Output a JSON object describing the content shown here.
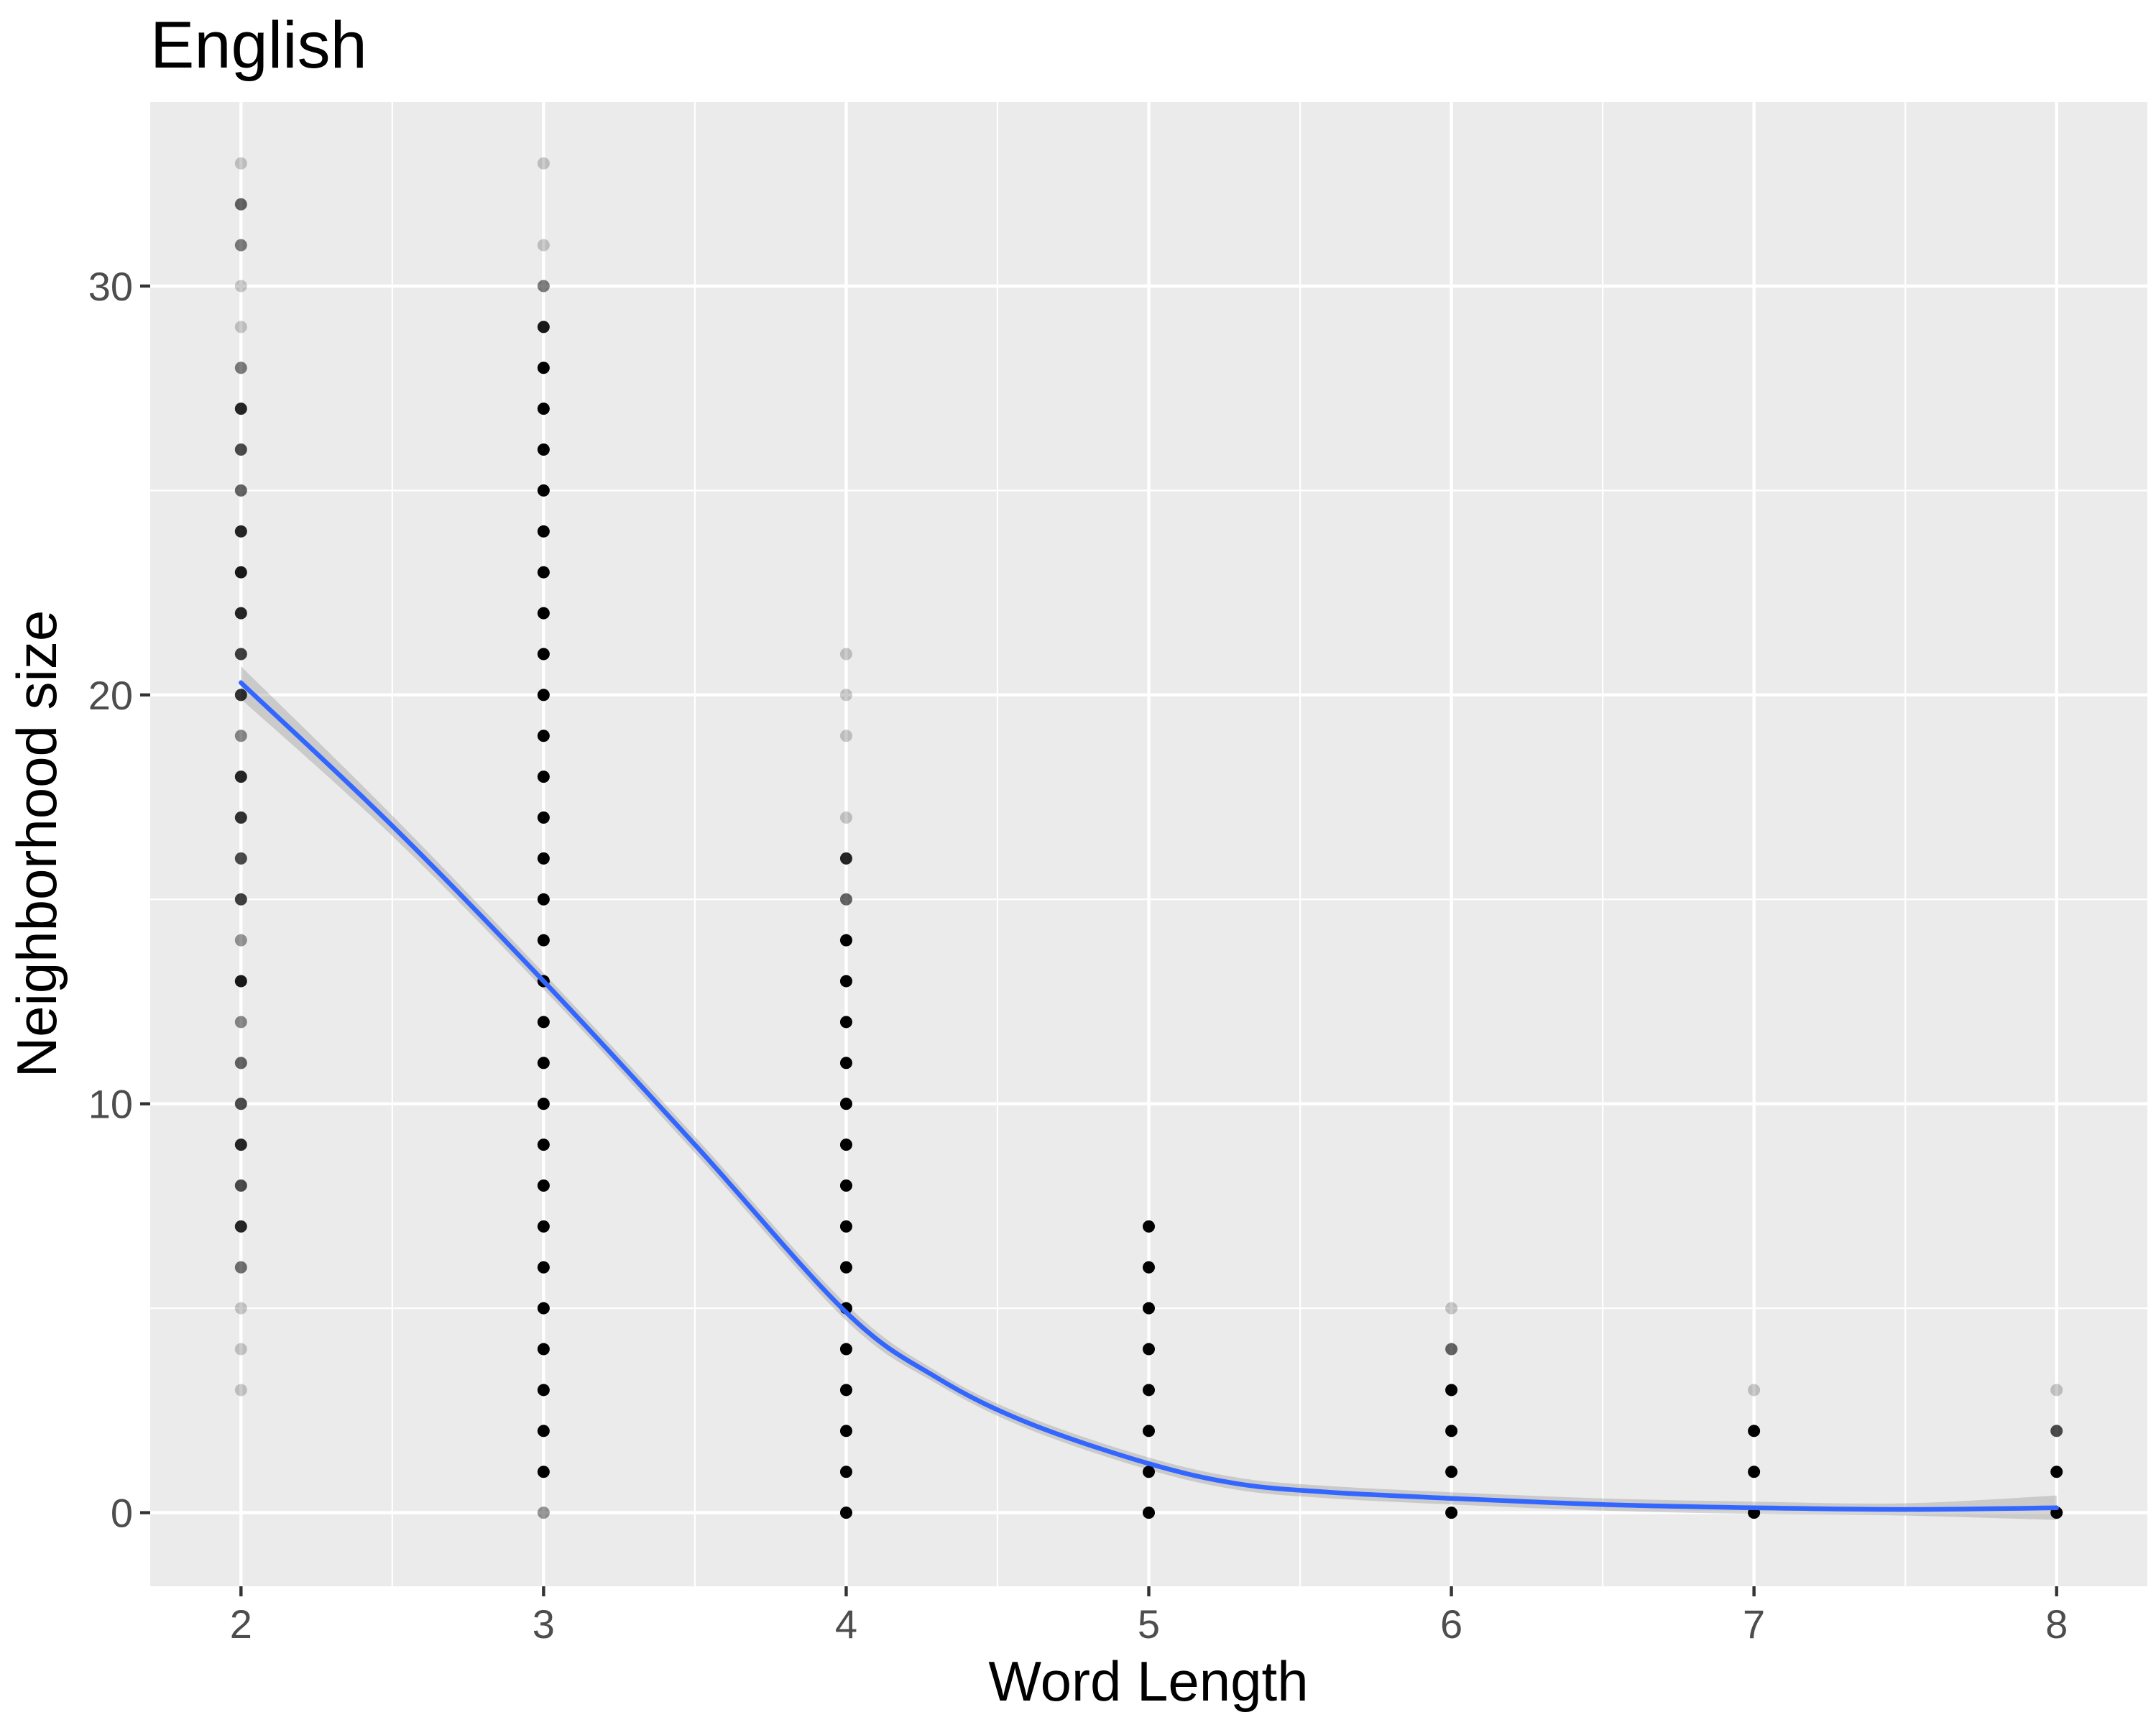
{
  "chart_data": {
    "type": "scatter",
    "title": "English",
    "xlabel": "Word Length",
    "ylabel": "Neighborhood size",
    "xlim": [
      1.7,
      8.3
    ],
    "ylim": [
      -1.8,
      34.5
    ],
    "x_ticks": [
      2,
      3,
      4,
      5,
      6,
      7,
      8
    ],
    "y_ticks": [
      0,
      10,
      20,
      30
    ],
    "grid": true,
    "colors": {
      "panel": "#ebebeb",
      "grid": "#ffffff",
      "point": "#000000",
      "line": "#3366ff",
      "ribbon": "#999999"
    },
    "points": [
      {
        "x": 2,
        "y": 3,
        "opacity": 0.2
      },
      {
        "x": 2,
        "y": 4,
        "opacity": 0.2
      },
      {
        "x": 2,
        "y": 5,
        "opacity": 0.2
      },
      {
        "x": 2,
        "y": 6,
        "opacity": 0.55
      },
      {
        "x": 2,
        "y": 7,
        "opacity": 0.85
      },
      {
        "x": 2,
        "y": 8,
        "opacity": 0.7
      },
      {
        "x": 2,
        "y": 9,
        "opacity": 0.85
      },
      {
        "x": 2,
        "y": 10,
        "opacity": 0.7
      },
      {
        "x": 2,
        "y": 11,
        "opacity": 0.6
      },
      {
        "x": 2,
        "y": 12,
        "opacity": 0.45
      },
      {
        "x": 2,
        "y": 13,
        "opacity": 0.9
      },
      {
        "x": 2,
        "y": 14,
        "opacity": 0.4
      },
      {
        "x": 2,
        "y": 15,
        "opacity": 0.75
      },
      {
        "x": 2,
        "y": 16,
        "opacity": 0.7
      },
      {
        "x": 2,
        "y": 17,
        "opacity": 0.8
      },
      {
        "x": 2,
        "y": 18,
        "opacity": 0.85
      },
      {
        "x": 2,
        "y": 19,
        "opacity": 0.45
      },
      {
        "x": 2,
        "y": 20,
        "opacity": 0.8
      },
      {
        "x": 2,
        "y": 21,
        "opacity": 0.75
      },
      {
        "x": 2,
        "y": 22,
        "opacity": 0.85
      },
      {
        "x": 2,
        "y": 23,
        "opacity": 0.9
      },
      {
        "x": 2,
        "y": 24,
        "opacity": 0.85
      },
      {
        "x": 2,
        "y": 25,
        "opacity": 0.6
      },
      {
        "x": 2,
        "y": 26,
        "opacity": 0.7
      },
      {
        "x": 2,
        "y": 27,
        "opacity": 0.85
      },
      {
        "x": 2,
        "y": 28,
        "opacity": 0.5
      },
      {
        "x": 2,
        "y": 29,
        "opacity": 0.2
      },
      {
        "x": 2,
        "y": 30,
        "opacity": 0.2
      },
      {
        "x": 2,
        "y": 31,
        "opacity": 0.5
      },
      {
        "x": 2,
        "y": 32,
        "opacity": 0.6
      },
      {
        "x": 2,
        "y": 33,
        "opacity": 0.2
      },
      {
        "x": 3,
        "y": 0,
        "opacity": 0.4
      },
      {
        "x": 3,
        "y": 1,
        "opacity": 1
      },
      {
        "x": 3,
        "y": 2,
        "opacity": 1
      },
      {
        "x": 3,
        "y": 3,
        "opacity": 1
      },
      {
        "x": 3,
        "y": 4,
        "opacity": 1
      },
      {
        "x": 3,
        "y": 5,
        "opacity": 1
      },
      {
        "x": 3,
        "y": 6,
        "opacity": 1
      },
      {
        "x": 3,
        "y": 7,
        "opacity": 1
      },
      {
        "x": 3,
        "y": 8,
        "opacity": 1
      },
      {
        "x": 3,
        "y": 9,
        "opacity": 1
      },
      {
        "x": 3,
        "y": 10,
        "opacity": 1
      },
      {
        "x": 3,
        "y": 11,
        "opacity": 1
      },
      {
        "x": 3,
        "y": 12,
        "opacity": 1
      },
      {
        "x": 3,
        "y": 13,
        "opacity": 1
      },
      {
        "x": 3,
        "y": 14,
        "opacity": 1
      },
      {
        "x": 3,
        "y": 15,
        "opacity": 1
      },
      {
        "x": 3,
        "y": 16,
        "opacity": 1
      },
      {
        "x": 3,
        "y": 17,
        "opacity": 1
      },
      {
        "x": 3,
        "y": 18,
        "opacity": 1
      },
      {
        "x": 3,
        "y": 19,
        "opacity": 1
      },
      {
        "x": 3,
        "y": 20,
        "opacity": 1
      },
      {
        "x": 3,
        "y": 21,
        "opacity": 1
      },
      {
        "x": 3,
        "y": 22,
        "opacity": 1
      },
      {
        "x": 3,
        "y": 23,
        "opacity": 1
      },
      {
        "x": 3,
        "y": 24,
        "opacity": 1
      },
      {
        "x": 3,
        "y": 25,
        "opacity": 1
      },
      {
        "x": 3,
        "y": 26,
        "opacity": 1
      },
      {
        "x": 3,
        "y": 27,
        "opacity": 1
      },
      {
        "x": 3,
        "y": 28,
        "opacity": 1
      },
      {
        "x": 3,
        "y": 29,
        "opacity": 0.9
      },
      {
        "x": 3,
        "y": 30,
        "opacity": 0.5
      },
      {
        "x": 3,
        "y": 31,
        "opacity": 0.2
      },
      {
        "x": 3,
        "y": 33,
        "opacity": 0.2
      },
      {
        "x": 4,
        "y": 0,
        "opacity": 1
      },
      {
        "x": 4,
        "y": 1,
        "opacity": 1
      },
      {
        "x": 4,
        "y": 2,
        "opacity": 1
      },
      {
        "x": 4,
        "y": 3,
        "opacity": 1
      },
      {
        "x": 4,
        "y": 4,
        "opacity": 1
      },
      {
        "x": 4,
        "y": 5,
        "opacity": 1
      },
      {
        "x": 4,
        "y": 6,
        "opacity": 1
      },
      {
        "x": 4,
        "y": 7,
        "opacity": 1
      },
      {
        "x": 4,
        "y": 8,
        "opacity": 1
      },
      {
        "x": 4,
        "y": 9,
        "opacity": 1
      },
      {
        "x": 4,
        "y": 10,
        "opacity": 1
      },
      {
        "x": 4,
        "y": 11,
        "opacity": 1
      },
      {
        "x": 4,
        "y": 12,
        "opacity": 1
      },
      {
        "x": 4,
        "y": 13,
        "opacity": 1
      },
      {
        "x": 4,
        "y": 14,
        "opacity": 1
      },
      {
        "x": 4,
        "y": 15,
        "opacity": 0.6
      },
      {
        "x": 4,
        "y": 16,
        "opacity": 0.85
      },
      {
        "x": 4,
        "y": 17,
        "opacity": 0.2
      },
      {
        "x": 4,
        "y": 19,
        "opacity": 0.2
      },
      {
        "x": 4,
        "y": 20,
        "opacity": 0.2
      },
      {
        "x": 4,
        "y": 21,
        "opacity": 0.2
      },
      {
        "x": 5,
        "y": 0,
        "opacity": 1
      },
      {
        "x": 5,
        "y": 1,
        "opacity": 1
      },
      {
        "x": 5,
        "y": 2,
        "opacity": 1
      },
      {
        "x": 5,
        "y": 3,
        "opacity": 1
      },
      {
        "x": 5,
        "y": 4,
        "opacity": 1
      },
      {
        "x": 5,
        "y": 5,
        "opacity": 1
      },
      {
        "x": 5,
        "y": 6,
        "opacity": 1
      },
      {
        "x": 5,
        "y": 7,
        "opacity": 1
      },
      {
        "x": 6,
        "y": 0,
        "opacity": 1
      },
      {
        "x": 6,
        "y": 1,
        "opacity": 1
      },
      {
        "x": 6,
        "y": 2,
        "opacity": 1
      },
      {
        "x": 6,
        "y": 3,
        "opacity": 1
      },
      {
        "x": 6,
        "y": 4,
        "opacity": 0.6
      },
      {
        "x": 6,
        "y": 5,
        "opacity": 0.2
      },
      {
        "x": 7,
        "y": 0,
        "opacity": 1
      },
      {
        "x": 7,
        "y": 1,
        "opacity": 1
      },
      {
        "x": 7,
        "y": 2,
        "opacity": 1
      },
      {
        "x": 7,
        "y": 3,
        "opacity": 0.2
      },
      {
        "x": 8,
        "y": 0,
        "opacity": 1
      },
      {
        "x": 8,
        "y": 1,
        "opacity": 1
      },
      {
        "x": 8,
        "y": 2,
        "opacity": 0.7
      },
      {
        "x": 8,
        "y": 3,
        "opacity": 0.2
      }
    ],
    "smooth": {
      "x": [
        2.0,
        2.5,
        3.0,
        3.5,
        4.0,
        4.3,
        4.6,
        5.0,
        5.3,
        5.6,
        6.0,
        6.5,
        7.0,
        7.5,
        8.0
      ],
      "y": [
        20.3,
        16.8,
        13.0,
        9.0,
        4.9,
        3.3,
        2.2,
        1.2,
        0.7,
        0.5,
        0.35,
        0.2,
        0.12,
        0.08,
        0.12
      ],
      "se": [
        0.4,
        0.25,
        0.2,
        0.2,
        0.2,
        0.15,
        0.15,
        0.15,
        0.15,
        0.15,
        0.15,
        0.15,
        0.15,
        0.15,
        0.3
      ]
    }
  }
}
